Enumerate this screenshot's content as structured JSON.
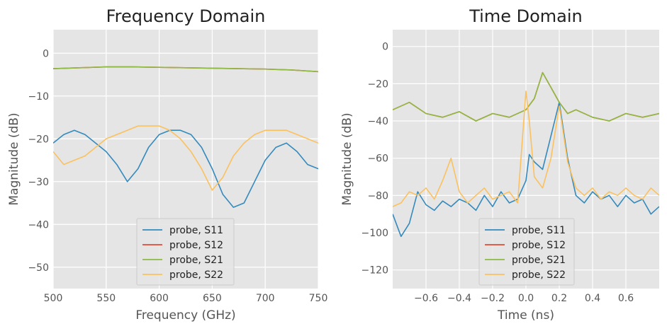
{
  "colors": {
    "S11": "#348ABD",
    "S12": "#E24A33",
    "S21": "#8EBA42",
    "S22": "#FBC15E",
    "axes_bg": "#E5E5E5",
    "grid": "#FFFFFF"
  },
  "chart_data": [
    {
      "type": "line",
      "title": "Frequency Domain",
      "xlabel": "Frequency (GHz)",
      "ylabel": "Magnitude (dB)",
      "xlim": [
        500,
        750
      ],
      "ylim": [
        -55,
        5.5
      ],
      "xticks": [
        500,
        550,
        600,
        650,
        700,
        750
      ],
      "yticks": [
        0,
        -10,
        -20,
        -30,
        -40,
        -50
      ],
      "xtick_labels": [
        "500",
        "550",
        "600",
        "650",
        "700",
        "750"
      ],
      "ytick_labels": [
        "0",
        "−10",
        "−20",
        "−30",
        "−40",
        "−50"
      ],
      "grid": true,
      "legend": "bottom-center",
      "series": [
        {
          "name": "probe, S11",
          "key": "S11",
          "x": [
            500,
            510,
            520,
            530,
            540,
            550,
            560,
            570,
            580,
            590,
            600,
            610,
            620,
            630,
            640,
            650,
            660,
            670,
            680,
            690,
            700,
            710,
            720,
            730,
            740,
            750
          ],
          "values": [
            -21,
            -19,
            -18,
            -19,
            -21,
            -23,
            -26,
            -30,
            -27,
            -22,
            -19,
            -18,
            -18,
            -19,
            -22,
            -27,
            -33,
            -36,
            -35,
            -30,
            -25,
            -22,
            -21,
            -23,
            -26,
            -27
          ]
        },
        {
          "name": "probe, S12",
          "key": "S12",
          "x": [
            500,
            525,
            550,
            575,
            600,
            625,
            650,
            675,
            700,
            725,
            750
          ],
          "values": [
            -3.6,
            -3.4,
            -3.2,
            -3.2,
            -3.3,
            -3.4,
            -3.5,
            -3.6,
            -3.7,
            -3.9,
            -4.3
          ]
        },
        {
          "name": "probe, S21",
          "key": "S21",
          "x": [
            500,
            525,
            550,
            575,
            600,
            625,
            650,
            675,
            700,
            725,
            750
          ],
          "values": [
            -3.6,
            -3.4,
            -3.2,
            -3.2,
            -3.3,
            -3.4,
            -3.5,
            -3.6,
            -3.7,
            -3.9,
            -4.3
          ]
        },
        {
          "name": "probe, S22",
          "key": "S22",
          "x": [
            500,
            510,
            520,
            530,
            540,
            550,
            560,
            570,
            580,
            590,
            600,
            610,
            620,
            630,
            640,
            650,
            660,
            670,
            680,
            690,
            700,
            710,
            720,
            730,
            740,
            750
          ],
          "values": [
            -23,
            -26,
            -25,
            -24,
            -22,
            -20,
            -19,
            -18,
            -17,
            -17,
            -17,
            -18,
            -20,
            -23,
            -27,
            -32,
            -29,
            -24,
            -21,
            -19,
            -18,
            -18,
            -18,
            -19,
            -20,
            -21
          ]
        }
      ]
    },
    {
      "type": "line",
      "title": "Time Domain",
      "xlabel": "Time (ns)",
      "ylabel": "Magnitude (dB)",
      "xlim": [
        -0.8,
        0.8
      ],
      "ylim": [
        -130,
        9
      ],
      "xticks": [
        -0.6,
        -0.4,
        -0.2,
        0.0,
        0.2,
        0.4,
        0.6
      ],
      "yticks": [
        0,
        -20,
        -40,
        -60,
        -80,
        -100,
        -120
      ],
      "xtick_labels": [
        "−0.6",
        "−0.4",
        "−0.2",
        "0.0",
        "0.2",
        "0.4",
        "0.6"
      ],
      "ytick_labels": [
        "0",
        "−20",
        "−40",
        "−60",
        "−80",
        "−100",
        "−120"
      ],
      "grid": true,
      "legend": "bottom-center",
      "series": [
        {
          "name": "probe, S11",
          "key": "S11",
          "x": [
            -0.8,
            -0.75,
            -0.7,
            -0.65,
            -0.6,
            -0.55,
            -0.5,
            -0.45,
            -0.4,
            -0.35,
            -0.3,
            -0.25,
            -0.2,
            -0.15,
            -0.1,
            -0.05,
            0.0,
            0.02,
            0.05,
            0.1,
            0.15,
            0.2,
            0.25,
            0.3,
            0.35,
            0.4,
            0.45,
            0.5,
            0.55,
            0.6,
            0.65,
            0.7,
            0.75,
            0.8
          ],
          "values": [
            -90,
            -102,
            -95,
            -78,
            -85,
            -88,
            -83,
            -86,
            -82,
            -84,
            -88,
            -80,
            -86,
            -78,
            -84,
            -82,
            -72,
            -58,
            -62,
            -66,
            -48,
            -30,
            -60,
            -80,
            -84,
            -78,
            -82,
            -80,
            -86,
            -80,
            -84,
            -82,
            -90,
            -86
          ]
        },
        {
          "name": "probe, S12",
          "key": "S12",
          "x": [
            -0.8,
            -0.7,
            -0.6,
            -0.5,
            -0.4,
            -0.3,
            -0.2,
            -0.1,
            0.0,
            0.05,
            0.1,
            0.15,
            0.2,
            0.25,
            0.3,
            0.4,
            0.5,
            0.6,
            0.7,
            0.8
          ],
          "values": [
            -34,
            -30,
            -36,
            -38,
            -35,
            -40,
            -36,
            -38,
            -34,
            -28,
            -14,
            -22,
            -30,
            -36,
            -34,
            -38,
            -40,
            -36,
            -38,
            -36
          ]
        },
        {
          "name": "probe, S21",
          "key": "S21",
          "x": [
            -0.8,
            -0.7,
            -0.6,
            -0.5,
            -0.4,
            -0.3,
            -0.2,
            -0.1,
            0.0,
            0.05,
            0.1,
            0.15,
            0.2,
            0.25,
            0.3,
            0.4,
            0.5,
            0.6,
            0.7,
            0.8
          ],
          "values": [
            -34,
            -30,
            -36,
            -38,
            -35,
            -40,
            -36,
            -38,
            -34,
            -28,
            -14,
            -22,
            -30,
            -36,
            -34,
            -38,
            -40,
            -36,
            -38,
            -36
          ]
        },
        {
          "name": "probe, S22",
          "key": "S22",
          "x": [
            -0.8,
            -0.75,
            -0.7,
            -0.65,
            -0.6,
            -0.55,
            -0.5,
            -0.45,
            -0.4,
            -0.35,
            -0.3,
            -0.25,
            -0.2,
            -0.15,
            -0.1,
            -0.05,
            0.0,
            0.02,
            0.05,
            0.1,
            0.15,
            0.2,
            0.25,
            0.3,
            0.35,
            0.4,
            0.45,
            0.5,
            0.55,
            0.6,
            0.65,
            0.7,
            0.75,
            0.8
          ],
          "values": [
            -86,
            -84,
            -78,
            -80,
            -76,
            -82,
            -72,
            -60,
            -78,
            -84,
            -80,
            -76,
            -82,
            -80,
            -78,
            -84,
            -24,
            -40,
            -70,
            -76,
            -60,
            -32,
            -62,
            -76,
            -80,
            -76,
            -82,
            -78,
            -80,
            -76,
            -80,
            -82,
            -76,
            -80
          ]
        }
      ]
    }
  ]
}
